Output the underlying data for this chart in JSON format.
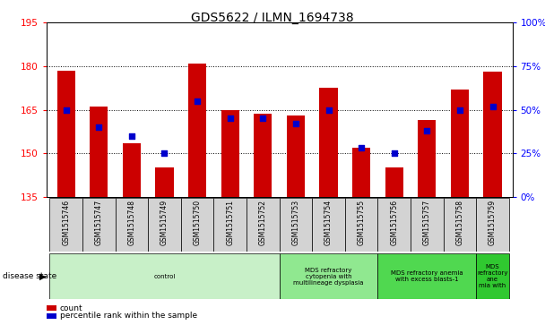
{
  "title": "GDS5622 / ILMN_1694738",
  "samples": [
    "GSM1515746",
    "GSM1515747",
    "GSM1515748",
    "GSM1515749",
    "GSM1515750",
    "GSM1515751",
    "GSM1515752",
    "GSM1515753",
    "GSM1515754",
    "GSM1515755",
    "GSM1515756",
    "GSM1515757",
    "GSM1515758",
    "GSM1515759"
  ],
  "counts": [
    178.5,
    166.0,
    153.5,
    145.0,
    181.0,
    165.0,
    163.5,
    163.0,
    172.5,
    152.0,
    145.0,
    161.5,
    172.0,
    178.0
  ],
  "percentiles": [
    50.0,
    40.0,
    35.0,
    25.0,
    55.0,
    45.0,
    45.0,
    42.0,
    50.0,
    28.0,
    25.0,
    38.0,
    50.0,
    52.0
  ],
  "ylim_left": [
    135,
    195
  ],
  "ylim_right": [
    0,
    100
  ],
  "yticks_left": [
    135,
    150,
    165,
    180,
    195
  ],
  "yticks_right": [
    0,
    25,
    50,
    75,
    100
  ],
  "bar_color": "#cc0000",
  "dot_color": "#0000cc",
  "bg_color": "#ffffff",
  "sample_box_color": "#d3d3d3",
  "disease_groups": [
    {
      "label": "control",
      "start": 0,
      "end": 7,
      "color": "#c8f0c8"
    },
    {
      "label": "MDS refractory\ncytopenia with\nmultilineage dysplasia",
      "start": 7,
      "end": 10,
      "color": "#90e890"
    },
    {
      "label": "MDS refractory anemia\nwith excess blasts-1",
      "start": 10,
      "end": 13,
      "color": "#50d850"
    },
    {
      "label": "MDS\nrefractory\nane\nmia with",
      "start": 13,
      "end": 14,
      "color": "#30c830"
    }
  ],
  "legend_count_label": "count",
  "legend_pct_label": "percentile rank within the sample",
  "disease_state_label": "disease state",
  "bar_width": 0.55
}
